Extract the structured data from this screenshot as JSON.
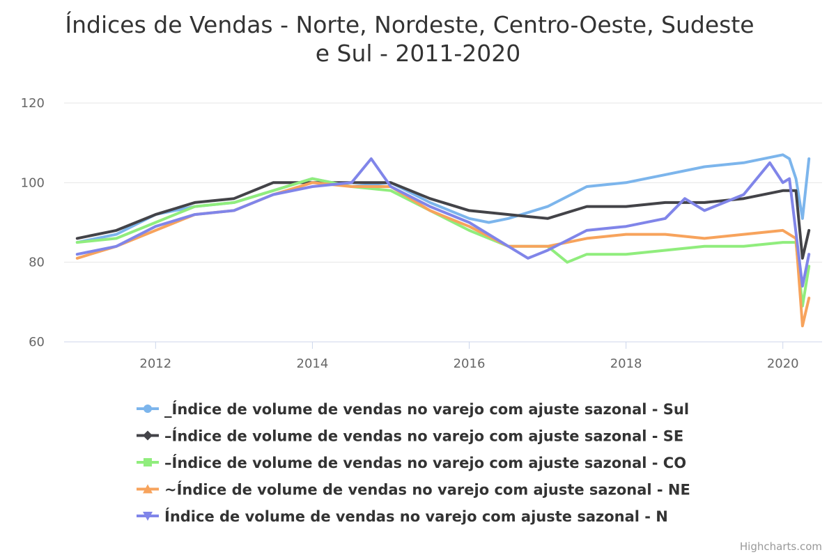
{
  "chart_data": {
    "type": "line",
    "title_line1": "Índices de Vendas - Norte, Nordeste, Centro-Oeste, Sudeste",
    "title_line2": "e Sul - 2011-2020",
    "x_start": "2011-01",
    "x_end": "2020-05",
    "ylim": [
      60,
      120
    ],
    "y_ticks": [
      60,
      80,
      100,
      120
    ],
    "x_ticks": [
      "2012",
      "2014",
      "2016",
      "2018",
      "2020"
    ],
    "grid": true,
    "legend_position": "bottom",
    "credits": "Highcharts.com",
    "series": [
      {
        "name": "_Índice de volume de vendas no varejo com ajuste sazonal - Sul",
        "color": "#7cb5ec",
        "marker": "circle",
        "points": [
          [
            "2011-01",
            85
          ],
          [
            "2011-07",
            87
          ],
          [
            "2012-01",
            92
          ],
          [
            "2012-07",
            94
          ],
          [
            "2013-01",
            95
          ],
          [
            "2013-07",
            98
          ],
          [
            "2014-01",
            101
          ],
          [
            "2014-07",
            99
          ],
          [
            "2015-01",
            100
          ],
          [
            "2015-07",
            95
          ],
          [
            "2016-01",
            91
          ],
          [
            "2016-04",
            90
          ],
          [
            "2016-07",
            91
          ],
          [
            "2017-01",
            94
          ],
          [
            "2017-07",
            99
          ],
          [
            "2018-01",
            100
          ],
          [
            "2018-07",
            102
          ],
          [
            "2019-01",
            104
          ],
          [
            "2019-07",
            105
          ],
          [
            "2020-01",
            107
          ],
          [
            "2020-02",
            106
          ],
          [
            "2020-03",
            101
          ],
          [
            "2020-04",
            91
          ],
          [
            "2020-05",
            106
          ]
        ]
      },
      {
        "name": "–Índice de volume de vendas no varejo com ajuste sazonal - SE",
        "color": "#434348",
        "marker": "diamond",
        "points": [
          [
            "2011-01",
            86
          ],
          [
            "2011-07",
            88
          ],
          [
            "2012-01",
            92
          ],
          [
            "2012-07",
            95
          ],
          [
            "2013-01",
            96
          ],
          [
            "2013-07",
            100
          ],
          [
            "2014-01",
            100
          ],
          [
            "2014-07",
            100
          ],
          [
            "2015-01",
            100
          ],
          [
            "2015-07",
            96
          ],
          [
            "2016-01",
            93
          ],
          [
            "2016-07",
            92
          ],
          [
            "2017-01",
            91
          ],
          [
            "2017-07",
            94
          ],
          [
            "2018-01",
            94
          ],
          [
            "2018-07",
            95
          ],
          [
            "2019-01",
            95
          ],
          [
            "2019-07",
            96
          ],
          [
            "2020-01",
            98
          ],
          [
            "2020-03",
            98
          ],
          [
            "2020-04",
            81
          ],
          [
            "2020-05",
            88
          ]
        ]
      },
      {
        "name": "–Índice de volume de vendas no varejo com ajuste sazonal - CO",
        "color": "#90ed7d",
        "marker": "square",
        "points": [
          [
            "2011-01",
            85
          ],
          [
            "2011-07",
            86
          ],
          [
            "2012-01",
            90
          ],
          [
            "2012-07",
            94
          ],
          [
            "2013-01",
            95
          ],
          [
            "2013-07",
            98
          ],
          [
            "2014-01",
            101
          ],
          [
            "2014-07",
            99
          ],
          [
            "2015-01",
            98
          ],
          [
            "2015-07",
            93
          ],
          [
            "2016-01",
            88
          ],
          [
            "2016-07",
            84
          ],
          [
            "2017-01",
            84
          ],
          [
            "2017-04",
            80
          ],
          [
            "2017-07",
            82
          ],
          [
            "2018-01",
            82
          ],
          [
            "2018-07",
            83
          ],
          [
            "2019-01",
            84
          ],
          [
            "2019-07",
            84
          ],
          [
            "2020-01",
            85
          ],
          [
            "2020-03",
            85
          ],
          [
            "2020-04",
            69
          ],
          [
            "2020-05",
            79
          ]
        ]
      },
      {
        "name": "~Índice de volume de vendas no varejo com ajuste sazonal - NE",
        "color": "#f7a35c",
        "marker": "triangle",
        "points": [
          [
            "2011-01",
            81
          ],
          [
            "2011-07",
            84
          ],
          [
            "2012-01",
            88
          ],
          [
            "2012-07",
            92
          ],
          [
            "2013-01",
            93
          ],
          [
            "2013-07",
            97
          ],
          [
            "2014-01",
            100
          ],
          [
            "2014-07",
            99
          ],
          [
            "2015-01",
            99
          ],
          [
            "2015-07",
            93
          ],
          [
            "2016-01",
            89
          ],
          [
            "2016-07",
            84
          ],
          [
            "2017-01",
            84
          ],
          [
            "2017-07",
            86
          ],
          [
            "2018-01",
            87
          ],
          [
            "2018-07",
            87
          ],
          [
            "2019-01",
            86
          ],
          [
            "2019-07",
            87
          ],
          [
            "2020-01",
            88
          ],
          [
            "2020-03",
            86
          ],
          [
            "2020-04",
            64
          ],
          [
            "2020-05",
            71
          ]
        ]
      },
      {
        "name": "Índice de volume de vendas no varejo com ajuste sazonal - N",
        "color": "#8085e9",
        "marker": "triangle-down",
        "points": [
          [
            "2011-01",
            82
          ],
          [
            "2011-07",
            84
          ],
          [
            "2012-01",
            89
          ],
          [
            "2012-07",
            92
          ],
          [
            "2013-01",
            93
          ],
          [
            "2013-07",
            97
          ],
          [
            "2014-01",
            99
          ],
          [
            "2014-07",
            100
          ],
          [
            "2014-10",
            106
          ],
          [
            "2015-01",
            99
          ],
          [
            "2015-07",
            94
          ],
          [
            "2016-01",
            90
          ],
          [
            "2016-07",
            84
          ],
          [
            "2016-10",
            81
          ],
          [
            "2017-01",
            83
          ],
          [
            "2017-07",
            88
          ],
          [
            "2018-01",
            89
          ],
          [
            "2018-07",
            91
          ],
          [
            "2018-10",
            96
          ],
          [
            "2019-01",
            93
          ],
          [
            "2019-07",
            97
          ],
          [
            "2019-11",
            105
          ],
          [
            "2020-01",
            100
          ],
          [
            "2020-02",
            101
          ],
          [
            "2020-04",
            74
          ],
          [
            "2020-05",
            82
          ]
        ]
      }
    ]
  }
}
